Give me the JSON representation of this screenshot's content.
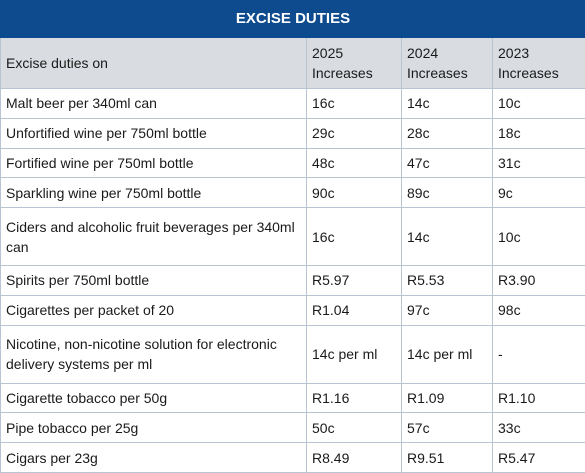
{
  "table": {
    "title": "EXCISE DUTIES",
    "header": {
      "item": "Excise duties on",
      "columns": [
        {
          "year": "2025",
          "label": "Increases"
        },
        {
          "year": "2024",
          "label": "Increases"
        },
        {
          "year": "2023",
          "label": "Increases"
        }
      ]
    },
    "rows": [
      {
        "item": "Malt beer per 340ml can",
        "v2025": "16c",
        "v2024": "14c",
        "v2023": "10c"
      },
      {
        "item": "Unfortified wine per 750ml bottle",
        "v2025": "29c",
        "v2024": "28c",
        "v2023": "18c"
      },
      {
        "item": "Fortified wine per 750ml bottle",
        "v2025": "48c",
        "v2024": "47c",
        "v2023": "31c"
      },
      {
        "item": "Sparkling wine per 750ml bottle",
        "v2025": "90c",
        "v2024": "89c",
        "v2023": "9c"
      },
      {
        "item": "Ciders and alcoholic fruit beverages per 340ml can",
        "v2025": "16c",
        "v2024": "14c",
        "v2023": "10c"
      },
      {
        "item": "Spirits per 750ml bottle",
        "v2025": "R5.97",
        "v2024": "R5.53",
        "v2023": "R3.90"
      },
      {
        "item": "Cigarettes per packet of 20",
        "v2025": "R1.04",
        "v2024": "97c",
        "v2023": "98c"
      },
      {
        "item": "Nicotine, non-nicotine solution for electronic delivery systems per ml",
        "v2025": "14c per ml",
        "v2024": "14c per ml",
        "v2023": "-"
      },
      {
        "item": "Cigarette tobacco per 50g",
        "v2025": "R1.16",
        "v2024": "R1.09",
        "v2023": "R1.10"
      },
      {
        "item": "Pipe tobacco per 25g",
        "v2025": "50c",
        "v2024": "57c",
        "v2023": "33c"
      },
      {
        "item": "Cigars per 23g",
        "v2025": "R8.49",
        "v2024": "R9.51",
        "v2023": "R5.47"
      }
    ]
  },
  "colors": {
    "title_background": "#0d4b8e",
    "title_text": "#ffffff",
    "header_background": "#d9dde2",
    "grid_lines": "#b8c4d2"
  }
}
